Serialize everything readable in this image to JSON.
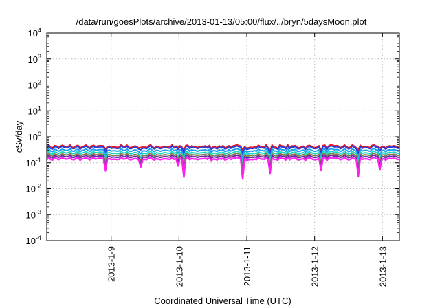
{
  "chart_data": {
    "type": "line",
    "title": "/data/run/goesPlots/archive/2013-01-13/05:00/flux/../bryn/5daysMoon.plot",
    "xlabel": "Coordinated Universal Time (UTC)",
    "ylabel": "cSv/day",
    "yscale": "log",
    "ylim": [
      0.0001,
      10000
    ],
    "x_ticks": [
      "2013-1-9",
      "2013-1-10",
      "2013-1-11",
      "2013-1-12",
      "2013-1-13"
    ],
    "x_range_days": [
      8.05,
      13.25
    ],
    "y_ticks": [
      {
        "base": "10",
        "exp": "4"
      },
      {
        "base": "10",
        "exp": "3"
      },
      {
        "base": "10",
        "exp": "2"
      },
      {
        "base": "10",
        "exp": "1"
      },
      {
        "base": "10",
        "exp": "0"
      },
      {
        "base": "10",
        "exp": "-1"
      },
      {
        "base": "10",
        "exp": "-2"
      },
      {
        "base": "10",
        "exp": "-3"
      },
      {
        "base": "10",
        "exp": "-4"
      }
    ],
    "grid": true,
    "series": [
      {
        "color": "#e8182a",
        "level": 0.42
      },
      {
        "color": "#2a3fd6",
        "level": 0.38
      },
      {
        "color": "#1aa0f0",
        "level": 0.3
      },
      {
        "color": "#18d8c8",
        "level": 0.24
      },
      {
        "color": "#8a7a4a",
        "level": 0.2
      },
      {
        "color": "#6a2aa8",
        "level": 0.17
      },
      {
        "color": "#ff22ee",
        "level": 0.14
      }
    ]
  }
}
